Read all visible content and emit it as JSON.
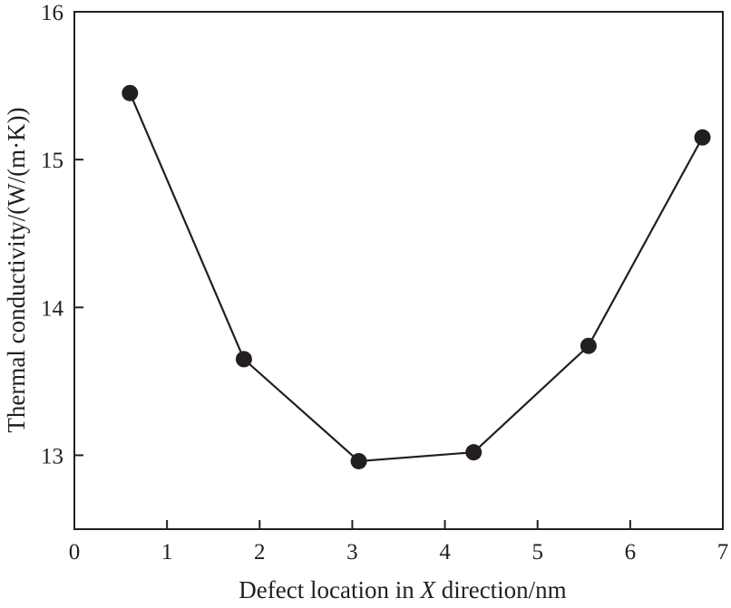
{
  "chart_data": {
    "type": "line",
    "title": "",
    "xlabel": "Defect location in X direction/nm",
    "xlabel_parts": {
      "before": "Defect location in ",
      "italic": "X",
      "after": " direction/nm"
    },
    "ylabel": "Thermal conductivity/(W/(m·K))",
    "xlim": [
      0,
      7
    ],
    "ylim": [
      12.5,
      16
    ],
    "x_ticks": [
      "0",
      "1",
      "2",
      "3",
      "4",
      "5",
      "6",
      "7"
    ],
    "y_ticks": [
      "13",
      "14",
      "15",
      "16"
    ],
    "grid": false,
    "legend": "none",
    "series": [
      {
        "x": [
          0.6,
          1.83,
          3.07,
          4.31,
          5.55,
          6.78
        ],
        "y": [
          15.45,
          13.65,
          12.96,
          13.02,
          13.74,
          15.15
        ]
      }
    ],
    "colors": {
      "line": "#231f20",
      "marker": "#231f20",
      "axis": "#231f20"
    }
  }
}
